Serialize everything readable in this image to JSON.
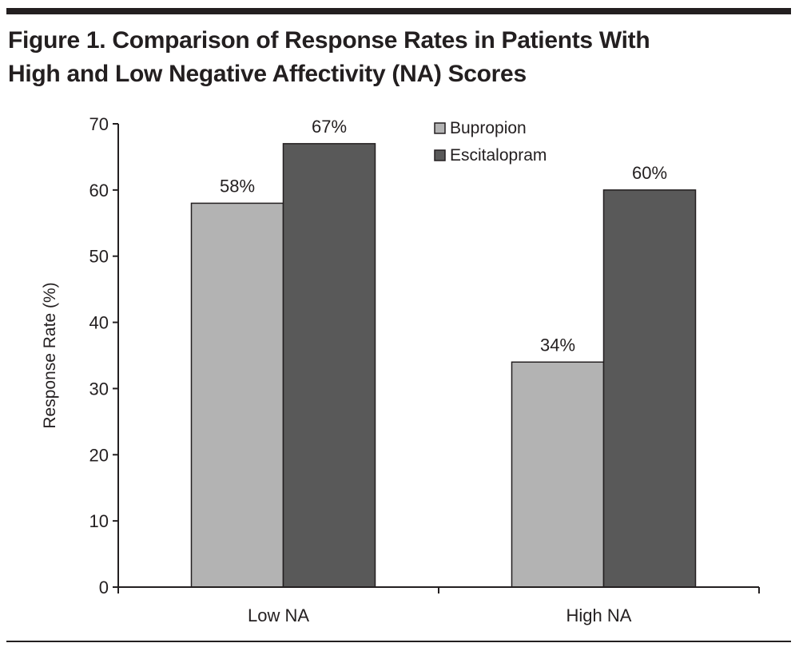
{
  "chart_data": {
    "type": "bar",
    "title_line1": "Figure 1. Comparison of Response Rates in Patients With",
    "title_line2": "High and Low Negative Affectivity (NA) Scores",
    "xlabel": "",
    "ylabel": "Response Rate (%)",
    "ylim": [
      0,
      70
    ],
    "yticks": [
      0,
      10,
      20,
      30,
      40,
      50,
      60,
      70
    ],
    "categories": [
      "Low NA",
      "High NA"
    ],
    "series": [
      {
        "name": "Bupropion",
        "values": [
          58,
          34
        ],
        "labels": [
          "58%",
          "34%"
        ],
        "color": "#b3b3b3"
      },
      {
        "name": "Escitalopram",
        "values": [
          67,
          60
        ],
        "labels": [
          "67%",
          "60%"
        ],
        "color": "#595959"
      }
    ],
    "grid": false,
    "legend_position": "top-right"
  }
}
